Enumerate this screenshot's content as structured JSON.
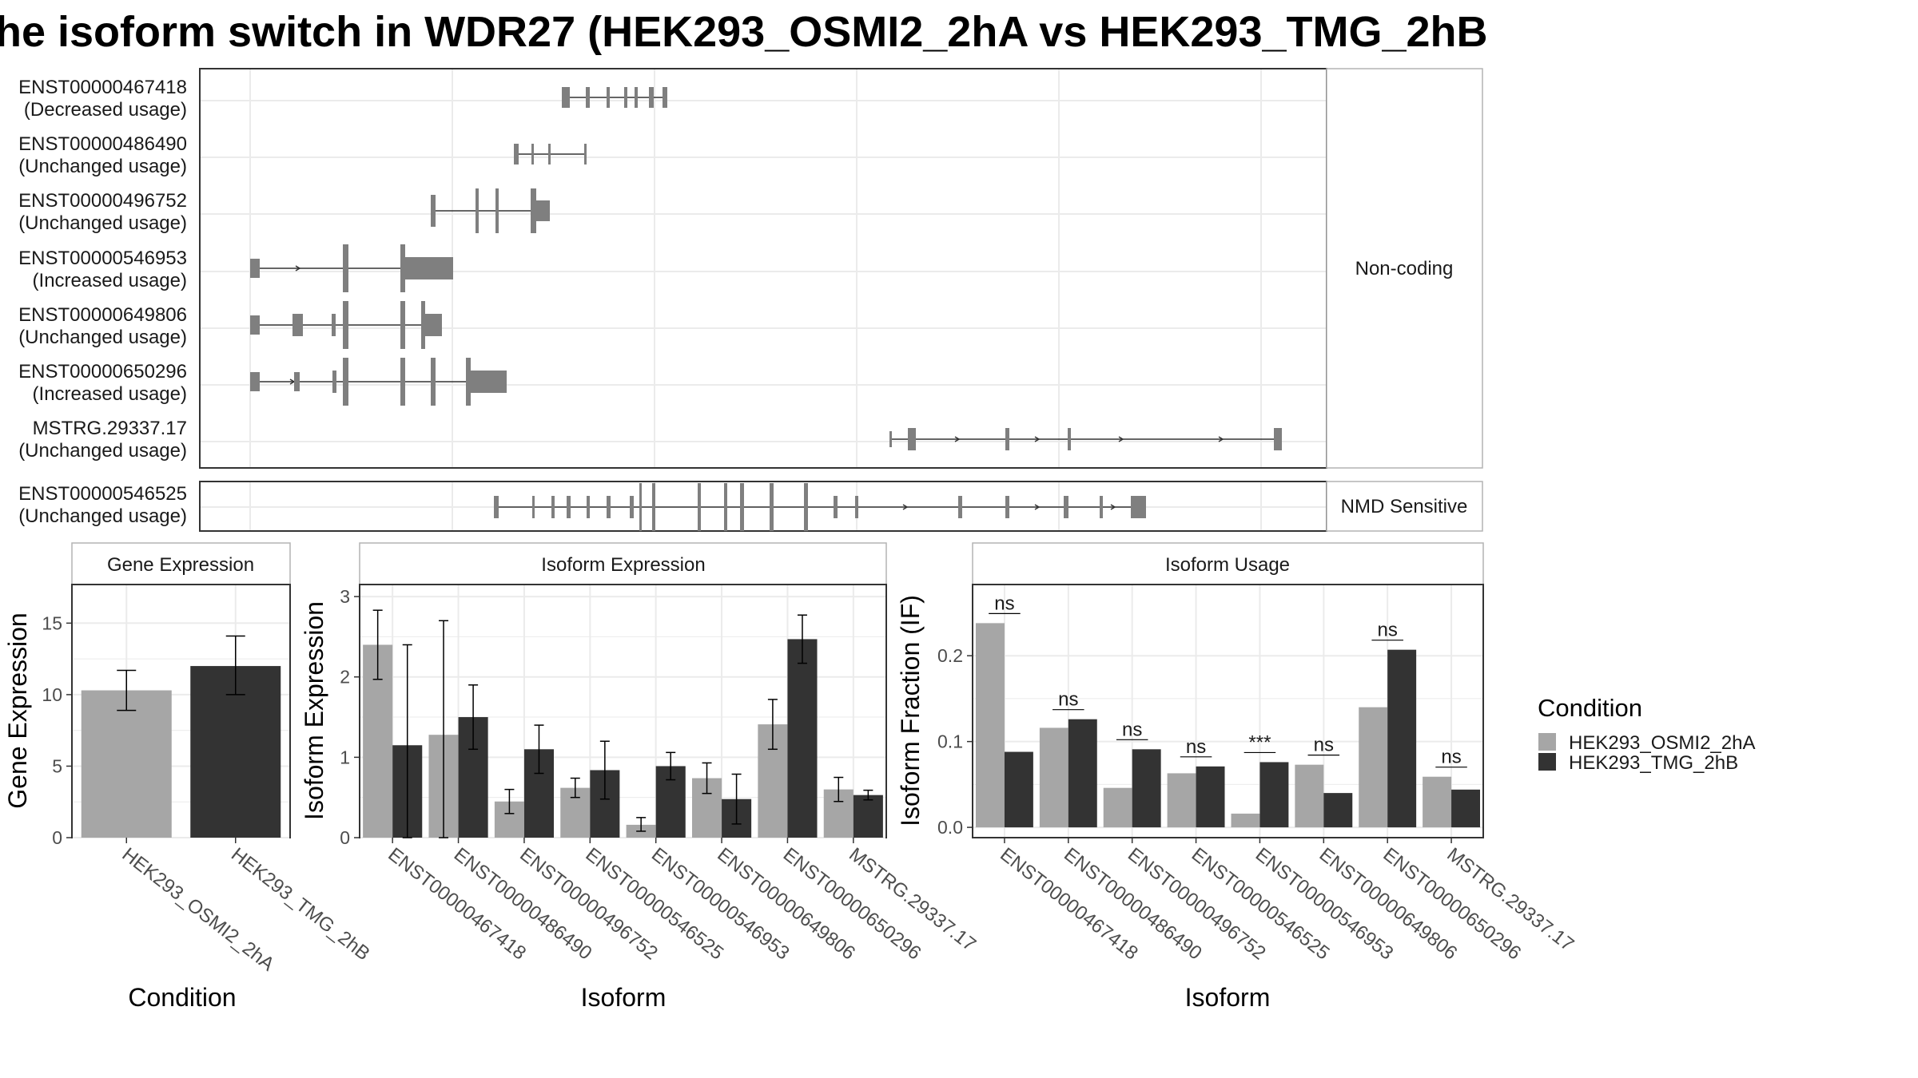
{
  "title": "he isoform switch in WDR27 (HEK293_OSMI2_2hA vs HEK293_TMG_2hB",
  "colors": {
    "cond1": "#a6a6a6",
    "cond2": "#333333",
    "exon": "#7f7f7f",
    "grid": "#ebebeb",
    "strip": "#f2f2f2"
  },
  "chart_data": [
    {
      "type": "gene-structure",
      "facets": [
        {
          "label": "Non-coding",
          "isoforms": [
            {
              "id": "ENST00000467418",
              "usage": "(Decreased usage)"
            },
            {
              "id": "ENST00000486490",
              "usage": "(Unchanged usage)"
            },
            {
              "id": "ENST00000496752",
              "usage": "(Unchanged usage)"
            },
            {
              "id": "ENST00000546953",
              "usage": "(Increased usage)"
            },
            {
              "id": "ENST00000649806",
              "usage": "(Unchanged usage)"
            },
            {
              "id": "ENST00000650296",
              "usage": "(Increased usage)"
            },
            {
              "id": "MSTRG.29337.17",
              "usage": "(Unchanged usage)"
            }
          ]
        },
        {
          "label": "NMD Sensitive",
          "isoforms": [
            {
              "id": "ENST00000546525",
              "usage": "(Unchanged usage)"
            }
          ]
        }
      ]
    },
    {
      "type": "bar",
      "title": "Gene Expression",
      "xlabel": "Condition",
      "ylabel": "Gene Expression",
      "ylim": [
        0,
        17.7
      ],
      "yticks": [
        0,
        5,
        10,
        15
      ],
      "categories": [
        "HEK293_OSMI2_2hA",
        "HEK293_TMG_2hB"
      ],
      "values": [
        10.3,
        12.0
      ],
      "error": [
        [
          8.9,
          11.7
        ],
        [
          10.0,
          14.1
        ]
      ]
    },
    {
      "type": "bar",
      "title": "Isoform Expression",
      "xlabel": "Isoform",
      "ylabel": "Isoform Expression",
      "ylim": [
        0,
        3.15
      ],
      "yticks": [
        0,
        1,
        2,
        3
      ],
      "categories": [
        "ENST00000467418",
        "ENST00000486490",
        "ENST00000496752",
        "ENST00000546525",
        "ENST00000546953",
        "ENST00000649806",
        "ENST00000650296",
        "MSTRG.29337.17"
      ],
      "series": [
        {
          "name": "HEK293_OSMI2_2hA",
          "values": [
            2.4,
            1.28,
            0.45,
            0.62,
            0.16,
            0.74,
            1.41,
            0.6
          ],
          "error": [
            [
              1.97,
              2.83
            ],
            [
              0,
              2.7
            ],
            [
              0.3,
              0.6
            ],
            [
              0.5,
              0.74
            ],
            [
              0.08,
              0.25
            ],
            [
              0.55,
              0.93
            ],
            [
              1.1,
              1.72
            ],
            [
              0.45,
              0.75
            ]
          ]
        },
        {
          "name": "HEK293_TMG_2hB",
          "values": [
            1.15,
            1.5,
            1.1,
            0.84,
            0.89,
            0.48,
            2.47,
            0.53
          ],
          "error": [
            [
              0,
              2.4
            ],
            [
              1.1,
              1.9
            ],
            [
              0.8,
              1.4
            ],
            [
              0.48,
              1.2
            ],
            [
              0.72,
              1.06
            ],
            [
              0.17,
              0.79
            ],
            [
              2.17,
              2.77
            ],
            [
              0.47,
              0.59
            ]
          ]
        }
      ]
    },
    {
      "type": "bar",
      "title": "Isoform Usage",
      "xlabel": "Isoform",
      "ylabel": "Isoform Fraction (IF)",
      "ylim": [
        -0.012,
        0.283
      ],
      "yticks": [
        0.0,
        0.1,
        0.2
      ],
      "ytick_labels": [
        "0.0",
        "0.1",
        "0.2"
      ],
      "categories": [
        "ENST00000467418",
        "ENST00000486490",
        "ENST00000496752",
        "ENST00000546525",
        "ENST00000546953",
        "ENST00000649806",
        "ENST00000650296",
        "MSTRG.29337.17"
      ],
      "series": [
        {
          "name": "HEK293_OSMI2_2hA",
          "values": [
            0.238,
            0.116,
            0.046,
            0.063,
            0.016,
            0.073,
            0.14,
            0.059
          ]
        },
        {
          "name": "HEK293_TMG_2hB",
          "values": [
            0.088,
            0.126,
            0.091,
            0.071,
            0.076,
            0.04,
            0.207,
            0.044
          ]
        }
      ],
      "significance": [
        "ns",
        "ns",
        "ns",
        "ns",
        "***",
        "ns",
        "ns",
        "ns"
      ]
    }
  ],
  "legend": {
    "title": "Condition",
    "items": [
      "HEK293_OSMI2_2hA",
      "HEK293_TMG_2hB"
    ]
  }
}
